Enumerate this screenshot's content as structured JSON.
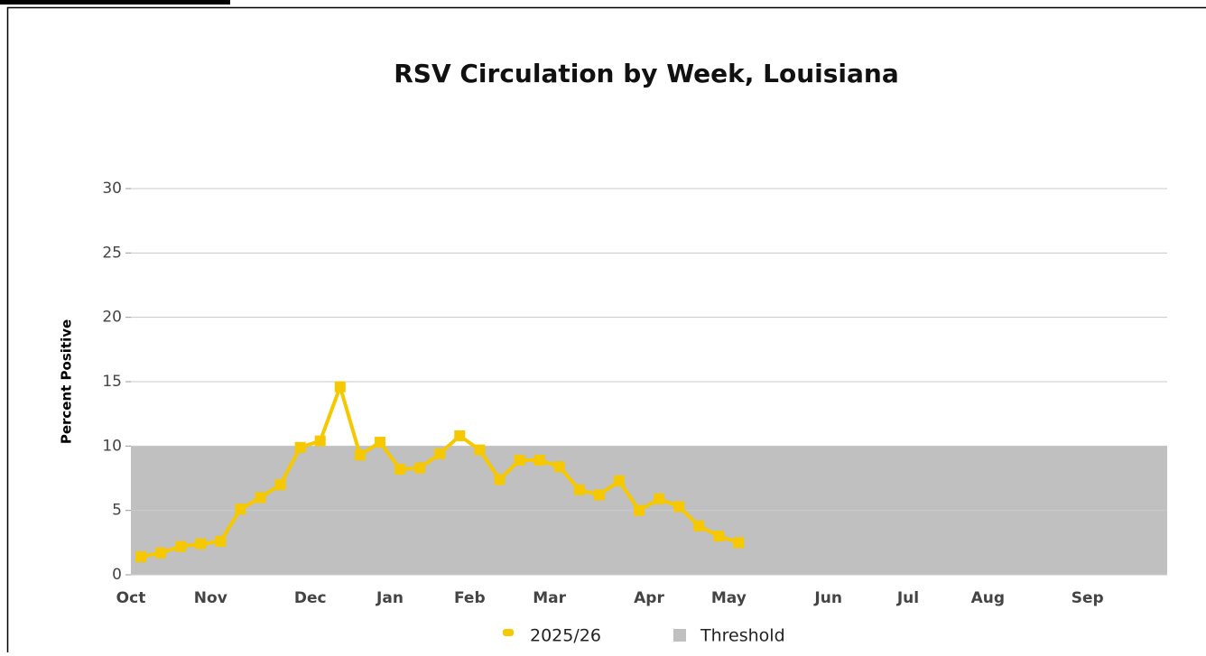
{
  "chart_data": {
    "type": "line",
    "title": "RSV Circulation by Week, Louisiana",
    "ylabel": "Percent Positive",
    "categories": [
      "Oct",
      null,
      null,
      null,
      "Nov",
      null,
      null,
      null,
      null,
      "Dec",
      null,
      null,
      null,
      "Jan",
      null,
      null,
      null,
      "Feb",
      null,
      null,
      null,
      "Mar",
      null,
      null,
      null,
      null,
      "Apr",
      null,
      null,
      null,
      "May",
      null,
      null,
      null,
      null,
      "Jun",
      null,
      null,
      null,
      "Jul",
      null,
      null,
      null,
      "Aug",
      null,
      null,
      null,
      null,
      "Sep",
      null,
      null,
      null
    ],
    "series": [
      {
        "name": "2025/26",
        "color": "#f5c800",
        "values": [
          1.4,
          1.7,
          2.2,
          2.4,
          2.6,
          5.1,
          6.0,
          7.0,
          9.9,
          10.4,
          14.6,
          9.3,
          10.3,
          8.2,
          8.3,
          9.4,
          10.8,
          9.7,
          7.4,
          8.9,
          8.9,
          8.4,
          6.6,
          6.2,
          7.3,
          5.0,
          5.9,
          5.3,
          3.8,
          3.0,
          2.5,
          null,
          null,
          null,
          null,
          null,
          null,
          null,
          null,
          null,
          null,
          null,
          null,
          null,
          null,
          null,
          null,
          null,
          null,
          null,
          null,
          null
        ]
      }
    ],
    "threshold": {
      "name": "Threshold",
      "value": 10,
      "color": "#c0c0c0"
    },
    "ylim": [
      0,
      30
    ],
    "yticks": [
      0,
      5,
      10,
      15,
      20,
      25,
      30
    ],
    "grid": true
  }
}
